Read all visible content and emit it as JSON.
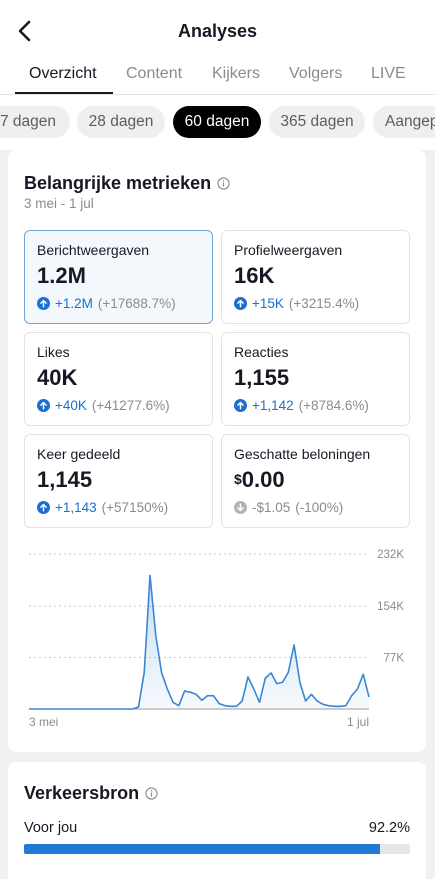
{
  "header": {
    "title": "Analyses",
    "back_icon": "chevron-left-icon"
  },
  "tabs": [
    {
      "label": "Overzicht",
      "active": true
    },
    {
      "label": "Content",
      "active": false
    },
    {
      "label": "Kijkers",
      "active": false
    },
    {
      "label": "Volgers",
      "active": false
    },
    {
      "label": "LIVE",
      "active": false
    }
  ],
  "periods": [
    {
      "label": "7 dagen",
      "active": false
    },
    {
      "label": "28 dagen",
      "active": false
    },
    {
      "label": "60 dagen",
      "active": true
    },
    {
      "label": "365 dagen",
      "active": false
    },
    {
      "label": "Aangepast",
      "active": false
    }
  ],
  "key_metrics": {
    "title": "Belangrijke metrieken",
    "date_range": "3 mei - 1 jul",
    "metrics": [
      {
        "label": "Berichtweergaven",
        "value": "1.2M",
        "change": "+1.2M",
        "change_pct": "(+17688.7%)",
        "direction": "up",
        "selected": true
      },
      {
        "label": "Profielweergaven",
        "value": "16K",
        "change": "+15K",
        "change_pct": "(+3215.4%)",
        "direction": "up",
        "selected": false
      },
      {
        "label": "Likes",
        "value": "40K",
        "change": "+40K",
        "change_pct": "(+41277.6%)",
        "direction": "up",
        "selected": false
      },
      {
        "label": "Reacties",
        "value": "1,155",
        "change": "+1,142",
        "change_pct": "(+8784.6%)",
        "direction": "up",
        "selected": false
      },
      {
        "label": "Keer gedeeld",
        "value": "1,145",
        "change": "+1,143",
        "change_pct": "(+57150%)",
        "direction": "up",
        "selected": false
      },
      {
        "label": "Geschatte beloningen",
        "currency": "$",
        "value": "0.00",
        "change": "-$1.05",
        "change_pct": "(-100%)",
        "direction": "down",
        "selected": false
      }
    ]
  },
  "chart_data": {
    "type": "area",
    "x_start_label": "3 mei",
    "x_end_label": "1 jul",
    "y_ticks": [
      {
        "label": "77K",
        "value": 77000
      },
      {
        "label": "154K",
        "value": 154000
      },
      {
        "label": "232K",
        "value": 232000
      }
    ],
    "ylim": [
      0,
      232000
    ],
    "grid": "horizontal-dotted",
    "color": "#3a86d4",
    "x": [
      0,
      1,
      2,
      3,
      4,
      5,
      6,
      7,
      8,
      9,
      10,
      11,
      12,
      13,
      14,
      15,
      16,
      17,
      18,
      19,
      20,
      21,
      22,
      23,
      24,
      25,
      26,
      27,
      28,
      29,
      30,
      31,
      32,
      33,
      34,
      35,
      36,
      37,
      38,
      39,
      40,
      41,
      42,
      43,
      44,
      45,
      46,
      47,
      48,
      49,
      50,
      51,
      52,
      53,
      54,
      55,
      56,
      57,
      58,
      59
    ],
    "values": [
      0,
      0,
      0,
      0,
      0,
      0,
      0,
      0,
      0,
      0,
      0,
      0,
      0,
      0,
      0,
      0,
      0,
      0,
      0,
      0,
      0,
      0,
      0,
      0,
      0,
      0,
      0,
      0,
      0,
      0,
      0,
      0,
      0,
      0,
      0,
      0,
      0,
      0,
      0,
      0,
      0,
      0,
      0,
      0,
      0,
      0,
      0,
      0,
      0,
      0,
      0,
      0,
      0,
      0,
      0,
      0,
      0,
      0,
      0,
      0
    ],
    "series": [
      {
        "values": [
          0,
          0,
          0,
          0,
          0,
          0,
          0,
          0,
          0,
          0,
          0,
          0,
          0,
          0,
          0,
          0,
          0,
          0,
          0,
          3000,
          55000,
          200000,
          110000,
          55000,
          30000,
          10000,
          5000,
          27000,
          25000,
          22000,
          13000,
          20000,
          20000,
          8000,
          5000,
          4000,
          4000,
          12000,
          48000,
          30000,
          10000,
          46000,
          54000,
          38000,
          40000,
          55000,
          96000,
          40000,
          12000,
          22000,
          12000,
          7000,
          5000,
          4000,
          4000,
          5000,
          20000,
          30000,
          52000,
          18000
        ]
      }
    ]
  },
  "traffic_source": {
    "title": "Verkeersbron",
    "rows": [
      {
        "label": "Voor jou",
        "percent_label": "92.2%",
        "fraction": 0.922
      }
    ]
  },
  "colors": {
    "accent": "#1f7ad6",
    "selected_border": "#6fa6d8",
    "up": "#1a6fd0",
    "muted": "#8a8b91"
  }
}
